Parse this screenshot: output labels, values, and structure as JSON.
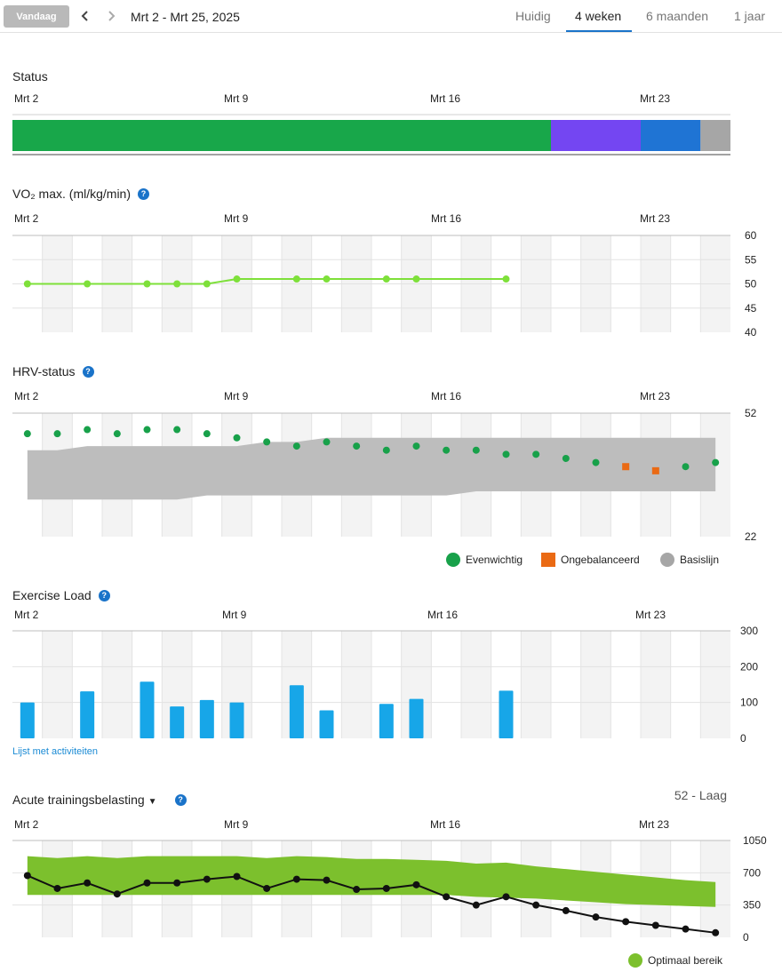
{
  "header": {
    "today_label": "Vandaag",
    "date_range": "Mrt 2 - Mrt 25, 2025",
    "tabs": [
      "Huidig",
      "4 weken",
      "6 maanden",
      "1 jaar"
    ],
    "active_tab": "4 weken"
  },
  "date_labels": [
    "Mrt 2",
    "Mrt 9",
    "Mrt 16",
    "Mrt 23"
  ],
  "status": {
    "title": "Status",
    "segments": [
      {
        "start_day": 0,
        "end_day": 18,
        "color": "#18a74a"
      },
      {
        "start_day": 18,
        "end_day": 21,
        "color": "#7446f2"
      },
      {
        "start_day": 21,
        "end_day": 23,
        "color": "#1f74d4"
      },
      {
        "start_day": 23,
        "end_day": 24,
        "color": "#a6a6a6"
      }
    ]
  },
  "vo2": {
    "title": "VO₂ max. (ml/kg/min)",
    "y_ticks": [
      "60",
      "55",
      "50",
      "45",
      "40"
    ]
  },
  "hrv": {
    "title": "HRV-status",
    "y_ticks": [
      "52",
      "22"
    ],
    "legend": {
      "balanced": "Evenwichtig",
      "unbalanced": "Ongebalanceerd",
      "baseline": "Basislijn"
    }
  },
  "exercise_load": {
    "title": "Exercise Load",
    "y_ticks": [
      "300",
      "200",
      "100",
      "0"
    ],
    "link": "Lijst met activiteiten"
  },
  "atl": {
    "title": "Acute trainingsbelasting",
    "value_label": "52 - Laag",
    "y_ticks": [
      "1050",
      "700",
      "350",
      "0"
    ],
    "legend": "Optimaal bereik"
  },
  "chart_data": [
    {
      "type": "line",
      "title": "VO₂ max. (ml/kg/min)",
      "x_days": [
        0,
        2,
        4,
        5,
        6,
        7,
        9,
        10,
        12,
        13,
        16
      ],
      "values": [
        50,
        50,
        50,
        50,
        50,
        51,
        51,
        51,
        51,
        51,
        51
      ],
      "ylim": [
        40,
        60
      ],
      "color": "#7ee03a"
    },
    {
      "type": "scatter",
      "title": "HRV-status",
      "x_days": [
        0,
        1,
        2,
        3,
        4,
        5,
        6,
        7,
        8,
        9,
        10,
        11,
        12,
        13,
        14,
        15,
        16,
        17,
        18,
        19,
        20,
        21,
        22,
        23
      ],
      "values": [
        47,
        47,
        48,
        47,
        48,
        48,
        47,
        46,
        45,
        44,
        45,
        44,
        43,
        44,
        43,
        43,
        42,
        42,
        41,
        40,
        39,
        38,
        39,
        40
      ],
      "status": [
        "b",
        "b",
        "b",
        "b",
        "b",
        "b",
        "b",
        "b",
        "b",
        "b",
        "b",
        "b",
        "b",
        "b",
        "b",
        "b",
        "b",
        "b",
        "b",
        "b",
        "u",
        "u",
        "b",
        "b"
      ],
      "baseline_low": [
        31,
        31,
        31,
        31,
        31,
        31,
        32,
        32,
        32,
        32,
        32,
        32,
        32,
        32,
        32,
        33,
        33,
        33,
        33,
        33,
        33,
        33,
        33,
        33
      ],
      "baseline_high": [
        43,
        43,
        44,
        44,
        44,
        44,
        44,
        44,
        45,
        45,
        46,
        46,
        46,
        46,
        46,
        46,
        46,
        46,
        46,
        46,
        46,
        46,
        46,
        46
      ],
      "ylim": [
        22,
        52
      ],
      "colors": {
        "balanced": "#18a14a",
        "unbalanced": "#ea6a14",
        "baseline": "#bdbdbd"
      }
    },
    {
      "type": "bar",
      "title": "Exercise Load",
      "x_days": [
        0,
        2,
        4,
        5,
        6,
        7,
        9,
        10,
        12,
        13,
        16
      ],
      "values": [
        100,
        131,
        158,
        89,
        107,
        100,
        148,
        78,
        96,
        110,
        133
      ],
      "ylim": [
        0,
        300
      ],
      "color": "#17a6e8"
    },
    {
      "type": "line",
      "title": "Acute trainingsbelasting",
      "x_days": [
        0,
        1,
        2,
        3,
        4,
        5,
        6,
        7,
        8,
        9,
        10,
        11,
        12,
        13,
        14,
        15,
        16,
        17,
        18,
        19,
        20,
        21,
        22,
        23
      ],
      "values": [
        670,
        530,
        590,
        470,
        590,
        590,
        630,
        660,
        530,
        630,
        620,
        520,
        530,
        570,
        440,
        350,
        440,
        350,
        290,
        220,
        170,
        130,
        90,
        50
      ],
      "optimal_low": [
        460,
        460,
        460,
        460,
        460,
        460,
        460,
        460,
        460,
        460,
        460,
        460,
        460,
        460,
        460,
        440,
        430,
        420,
        400,
        380,
        360,
        350,
        340,
        330
      ],
      "optimal_high": [
        880,
        860,
        880,
        860,
        880,
        880,
        880,
        880,
        860,
        880,
        870,
        850,
        850,
        840,
        830,
        800,
        810,
        770,
        740,
        710,
        680,
        650,
        620,
        600
      ],
      "ylim": [
        0,
        1050
      ],
      "colors": {
        "line": "#111111",
        "optimal": "#7cc02d"
      }
    }
  ]
}
